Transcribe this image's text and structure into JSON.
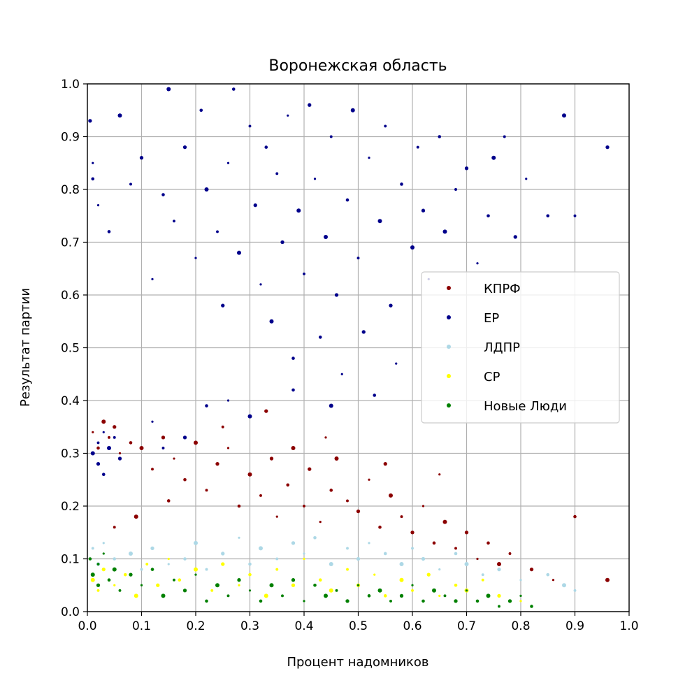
{
  "chart_data": {
    "type": "scatter",
    "title": "Воронежская область",
    "xlabel": "Процент надомников",
    "ylabel": "Результат партии",
    "xlim": [
      0.0,
      1.0
    ],
    "ylim": [
      0.0,
      1.0
    ],
    "xticks": [
      0.0,
      0.1,
      0.2,
      0.3,
      0.4,
      0.5,
      0.6,
      0.7,
      0.8,
      0.9,
      1.0
    ],
    "yticks": [
      0.0,
      0.1,
      0.2,
      0.3,
      0.4,
      0.5,
      0.6,
      0.7,
      0.8,
      0.9,
      1.0
    ],
    "xtick_labels": [
      "0.0",
      "0.1",
      "0.2",
      "0.3",
      "0.4",
      "0.5",
      "0.6",
      "0.7",
      "0.8",
      "0.9",
      "1.0"
    ],
    "ytick_labels": [
      "0.0",
      "0.1",
      "0.2",
      "0.3",
      "0.4",
      "0.5",
      "0.6",
      "0.7",
      "0.8",
      "0.9",
      "1.0"
    ],
    "grid": true,
    "legend_position": "center-right",
    "series": [
      {
        "name": "КПРФ",
        "color": "#8b0000",
        "points": [
          [
            0.01,
            0.34
          ],
          [
            0.02,
            0.31
          ],
          [
            0.03,
            0.36
          ],
          [
            0.04,
            0.33
          ],
          [
            0.05,
            0.35
          ],
          [
            0.06,
            0.3
          ],
          [
            0.08,
            0.32
          ],
          [
            0.1,
            0.31
          ],
          [
            0.12,
            0.27
          ],
          [
            0.14,
            0.33
          ],
          [
            0.16,
            0.29
          ],
          [
            0.18,
            0.25
          ],
          [
            0.2,
            0.32
          ],
          [
            0.22,
            0.23
          ],
          [
            0.24,
            0.28
          ],
          [
            0.26,
            0.31
          ],
          [
            0.28,
            0.2
          ],
          [
            0.3,
            0.26
          ],
          [
            0.32,
            0.22
          ],
          [
            0.34,
            0.29
          ],
          [
            0.35,
            0.18
          ],
          [
            0.37,
            0.24
          ],
          [
            0.38,
            0.31
          ],
          [
            0.4,
            0.2
          ],
          [
            0.41,
            0.27
          ],
          [
            0.43,
            0.17
          ],
          [
            0.45,
            0.23
          ],
          [
            0.46,
            0.29
          ],
          [
            0.48,
            0.21
          ],
          [
            0.5,
            0.19
          ],
          [
            0.52,
            0.25
          ],
          [
            0.54,
            0.16
          ],
          [
            0.56,
            0.22
          ],
          [
            0.58,
            0.18
          ],
          [
            0.6,
            0.15
          ],
          [
            0.62,
            0.2
          ],
          [
            0.64,
            0.13
          ],
          [
            0.66,
            0.17
          ],
          [
            0.68,
            0.12
          ],
          [
            0.7,
            0.15
          ],
          [
            0.72,
            0.1
          ],
          [
            0.74,
            0.13
          ],
          [
            0.76,
            0.09
          ],
          [
            0.78,
            0.11
          ],
          [
            0.82,
            0.08
          ],
          [
            0.86,
            0.06
          ],
          [
            0.9,
            0.18
          ],
          [
            0.96,
            0.06
          ],
          [
            0.25,
            0.35
          ],
          [
            0.33,
            0.38
          ],
          [
            0.44,
            0.33
          ],
          [
            0.15,
            0.21
          ],
          [
            0.09,
            0.18
          ],
          [
            0.05,
            0.16
          ],
          [
            0.55,
            0.28
          ],
          [
            0.65,
            0.26
          ]
        ]
      },
      {
        "name": "ЕР",
        "color": "#00008b",
        "points": [
          [
            0.005,
            0.93
          ],
          [
            0.01,
            0.85
          ],
          [
            0.01,
            0.82
          ],
          [
            0.01,
            0.3
          ],
          [
            0.02,
            0.32
          ],
          [
            0.02,
            0.28
          ],
          [
            0.03,
            0.34
          ],
          [
            0.03,
            0.26
          ],
          [
            0.04,
            0.31
          ],
          [
            0.05,
            0.33
          ],
          [
            0.06,
            0.29
          ],
          [
            0.02,
            0.77
          ],
          [
            0.04,
            0.72
          ],
          [
            0.06,
            0.94
          ],
          [
            0.08,
            0.81
          ],
          [
            0.1,
            0.86
          ],
          [
            0.12,
            0.63
          ],
          [
            0.14,
            0.79
          ],
          [
            0.15,
            0.99
          ],
          [
            0.16,
            0.74
          ],
          [
            0.18,
            0.88
          ],
          [
            0.2,
            0.67
          ],
          [
            0.21,
            0.95
          ],
          [
            0.22,
            0.8
          ],
          [
            0.24,
            0.72
          ],
          [
            0.25,
            0.58
          ],
          [
            0.26,
            0.85
          ],
          [
            0.27,
            0.99
          ],
          [
            0.28,
            0.68
          ],
          [
            0.3,
            0.92
          ],
          [
            0.31,
            0.77
          ],
          [
            0.32,
            0.62
          ],
          [
            0.33,
            0.88
          ],
          [
            0.34,
            0.55
          ],
          [
            0.35,
            0.83
          ],
          [
            0.36,
            0.7
          ],
          [
            0.37,
            0.94
          ],
          [
            0.38,
            0.48
          ],
          [
            0.39,
            0.76
          ],
          [
            0.4,
            0.64
          ],
          [
            0.41,
            0.96
          ],
          [
            0.42,
            0.82
          ],
          [
            0.43,
            0.52
          ],
          [
            0.44,
            0.71
          ],
          [
            0.45,
            0.9
          ],
          [
            0.46,
            0.6
          ],
          [
            0.47,
            0.45
          ],
          [
            0.48,
            0.78
          ],
          [
            0.49,
            0.95
          ],
          [
            0.5,
            0.67
          ],
          [
            0.51,
            0.53
          ],
          [
            0.52,
            0.86
          ],
          [
            0.53,
            0.41
          ],
          [
            0.54,
            0.74
          ],
          [
            0.55,
            0.92
          ],
          [
            0.56,
            0.58
          ],
          [
            0.57,
            0.47
          ],
          [
            0.58,
            0.81
          ],
          [
            0.6,
            0.69
          ],
          [
            0.61,
            0.88
          ],
          [
            0.62,
            0.76
          ],
          [
            0.63,
            0.63
          ],
          [
            0.65,
            0.9
          ],
          [
            0.66,
            0.72
          ],
          [
            0.68,
            0.8
          ],
          [
            0.7,
            0.84
          ],
          [
            0.72,
            0.66
          ],
          [
            0.74,
            0.75
          ],
          [
            0.75,
            0.86
          ],
          [
            0.77,
            0.9
          ],
          [
            0.79,
            0.71
          ],
          [
            0.81,
            0.82
          ],
          [
            0.85,
            0.75
          ],
          [
            0.88,
            0.94
          ],
          [
            0.9,
            0.75
          ],
          [
            0.96,
            0.88
          ],
          [
            0.12,
            0.36
          ],
          [
            0.22,
            0.39
          ],
          [
            0.3,
            0.37
          ],
          [
            0.14,
            0.31
          ],
          [
            0.18,
            0.33
          ],
          [
            0.26,
            0.4
          ],
          [
            0.38,
            0.42
          ],
          [
            0.45,
            0.39
          ]
        ]
      },
      {
        "name": "ЛДПР",
        "color": "#add8e6",
        "points": [
          [
            0.01,
            0.12
          ],
          [
            0.02,
            0.09
          ],
          [
            0.03,
            0.13
          ],
          [
            0.05,
            0.1
          ],
          [
            0.08,
            0.11
          ],
          [
            0.1,
            0.08
          ],
          [
            0.12,
            0.12
          ],
          [
            0.15,
            0.09
          ],
          [
            0.18,
            0.1
          ],
          [
            0.2,
            0.13
          ],
          [
            0.22,
            0.08
          ],
          [
            0.25,
            0.11
          ],
          [
            0.28,
            0.14
          ],
          [
            0.3,
            0.09
          ],
          [
            0.32,
            0.12
          ],
          [
            0.35,
            0.1
          ],
          [
            0.38,
            0.13
          ],
          [
            0.4,
            0.11
          ],
          [
            0.42,
            0.14
          ],
          [
            0.45,
            0.09
          ],
          [
            0.48,
            0.12
          ],
          [
            0.5,
            0.1
          ],
          [
            0.52,
            0.13
          ],
          [
            0.55,
            0.11
          ],
          [
            0.58,
            0.09
          ],
          [
            0.6,
            0.12
          ],
          [
            0.62,
            0.1
          ],
          [
            0.65,
            0.08
          ],
          [
            0.68,
            0.11
          ],
          [
            0.7,
            0.09
          ],
          [
            0.73,
            0.07
          ],
          [
            0.76,
            0.08
          ],
          [
            0.8,
            0.06
          ],
          [
            0.85,
            0.07
          ],
          [
            0.88,
            0.05
          ],
          [
            0.9,
            0.04
          ]
        ]
      },
      {
        "name": "СР",
        "color": "#ffff00",
        "points": [
          [
            0.01,
            0.06
          ],
          [
            0.02,
            0.04
          ],
          [
            0.03,
            0.08
          ],
          [
            0.05,
            0.05
          ],
          [
            0.07,
            0.07
          ],
          [
            0.09,
            0.03
          ],
          [
            0.11,
            0.09
          ],
          [
            0.13,
            0.05
          ],
          [
            0.15,
            0.1
          ],
          [
            0.17,
            0.06
          ],
          [
            0.2,
            0.08
          ],
          [
            0.23,
            0.04
          ],
          [
            0.25,
            0.09
          ],
          [
            0.28,
            0.05
          ],
          [
            0.3,
            0.07
          ],
          [
            0.33,
            0.03
          ],
          [
            0.35,
            0.08
          ],
          [
            0.38,
            0.05
          ],
          [
            0.4,
            0.1
          ],
          [
            0.43,
            0.06
          ],
          [
            0.45,
            0.04
          ],
          [
            0.48,
            0.08
          ],
          [
            0.5,
            0.05
          ],
          [
            0.53,
            0.07
          ],
          [
            0.55,
            0.03
          ],
          [
            0.58,
            0.06
          ],
          [
            0.6,
            0.04
          ],
          [
            0.63,
            0.07
          ],
          [
            0.65,
            0.03
          ],
          [
            0.68,
            0.05
          ],
          [
            0.7,
            0.04
          ],
          [
            0.73,
            0.06
          ],
          [
            0.76,
            0.03
          ],
          [
            0.8,
            0.02
          ]
        ]
      },
      {
        "name": "Новые Люди",
        "color": "#008000",
        "points": [
          [
            0.005,
            0.1
          ],
          [
            0.01,
            0.07
          ],
          [
            0.02,
            0.09
          ],
          [
            0.02,
            0.05
          ],
          [
            0.03,
            0.11
          ],
          [
            0.04,
            0.06
          ],
          [
            0.05,
            0.08
          ],
          [
            0.06,
            0.04
          ],
          [
            0.08,
            0.07
          ],
          [
            0.1,
            0.05
          ],
          [
            0.12,
            0.08
          ],
          [
            0.14,
            0.03
          ],
          [
            0.16,
            0.06
          ],
          [
            0.18,
            0.04
          ],
          [
            0.2,
            0.07
          ],
          [
            0.22,
            0.02
          ],
          [
            0.24,
            0.05
          ],
          [
            0.26,
            0.03
          ],
          [
            0.28,
            0.06
          ],
          [
            0.3,
            0.04
          ],
          [
            0.32,
            0.02
          ],
          [
            0.34,
            0.05
          ],
          [
            0.36,
            0.03
          ],
          [
            0.38,
            0.06
          ],
          [
            0.4,
            0.02
          ],
          [
            0.42,
            0.05
          ],
          [
            0.44,
            0.03
          ],
          [
            0.46,
            0.04
          ],
          [
            0.48,
            0.02
          ],
          [
            0.5,
            0.05
          ],
          [
            0.52,
            0.03
          ],
          [
            0.54,
            0.04
          ],
          [
            0.56,
            0.02
          ],
          [
            0.58,
            0.03
          ],
          [
            0.6,
            0.05
          ],
          [
            0.62,
            0.02
          ],
          [
            0.64,
            0.04
          ],
          [
            0.66,
            0.03
          ],
          [
            0.68,
            0.02
          ],
          [
            0.7,
            0.04
          ],
          [
            0.72,
            0.02
          ],
          [
            0.74,
            0.03
          ],
          [
            0.76,
            0.01
          ],
          [
            0.78,
            0.02
          ],
          [
            0.8,
            0.03
          ],
          [
            0.82,
            0.01
          ]
        ]
      }
    ]
  }
}
